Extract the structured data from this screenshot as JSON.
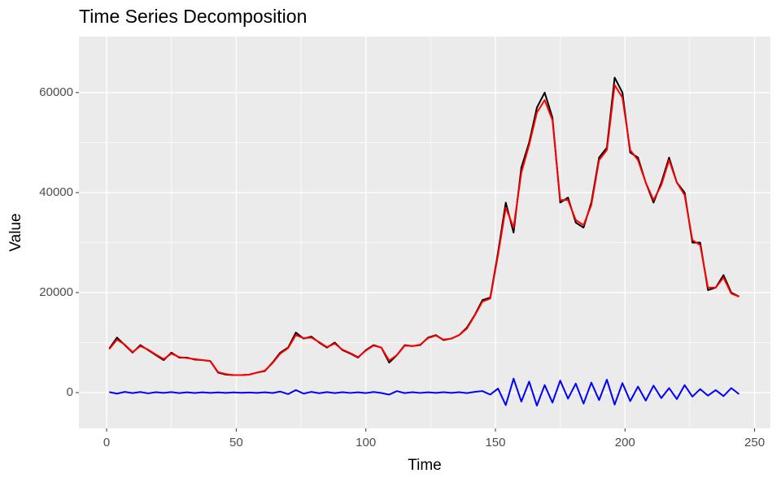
{
  "chart_data": {
    "type": "line",
    "title": "Time Series Decomposition",
    "x_label": "Time",
    "y_label": "Value",
    "x": [
      1,
      4,
      7,
      10,
      13,
      16,
      19,
      22,
      25,
      28,
      31,
      34,
      37,
      40,
      43,
      46,
      49,
      52,
      55,
      58,
      61,
      64,
      67,
      70,
      73,
      76,
      79,
      82,
      85,
      88,
      91,
      94,
      97,
      100,
      103,
      106,
      109,
      112,
      115,
      118,
      121,
      124,
      127,
      130,
      133,
      136,
      139,
      142,
      145,
      148,
      151,
      154,
      157,
      160,
      163,
      166,
      169,
      172,
      175,
      178,
      181,
      184,
      187,
      190,
      193,
      196,
      199,
      202,
      205,
      208,
      211,
      214,
      217,
      220,
      223,
      226,
      229,
      232,
      235,
      238,
      241,
      244
    ],
    "series": [
      {
        "color": "#000000",
        "values": [
          8800,
          11000,
          9500,
          8000,
          9500,
          8500,
          7500,
          6500,
          8000,
          7000,
          7000,
          6600,
          6500,
          6300,
          4000,
          3600,
          3500,
          3500,
          3600,
          4000,
          4300,
          6000,
          8000,
          9000,
          12000,
          10800,
          11200,
          10000,
          9000,
          10000,
          8500,
          7800,
          7000,
          8500,
          9500,
          9000,
          6000,
          7500,
          9500,
          9300,
          9500,
          11000,
          11500,
          10500,
          10800,
          11500,
          13000,
          15500,
          18500,
          19000,
          28000,
          38000,
          32000,
          45000,
          50000,
          57000,
          60000,
          55000,
          38000,
          39000,
          34000,
          33000,
          38000,
          47000,
          49000,
          63000,
          60000,
          48000,
          47000,
          42000,
          38000,
          42000,
          47000,
          42000,
          40000,
          30000,
          30000,
          20500,
          21000,
          23500,
          20000,
          19200
        ]
      },
      {
        "color": "#ff0000",
        "values": [
          8700,
          10600,
          9600,
          8100,
          9300,
          8600,
          7600,
          6700,
          7800,
          7100,
          6900,
          6700,
          6500,
          6300,
          4100,
          3700,
          3500,
          3500,
          3600,
          4000,
          4400,
          5900,
          7800,
          8900,
          11500,
          10900,
          11000,
          10100,
          9100,
          9800,
          8600,
          7900,
          7100,
          8400,
          9400,
          9000,
          6400,
          7500,
          9400,
          9300,
          9600,
          10900,
          11400,
          10600,
          10800,
          11500,
          12800,
          15400,
          18200,
          18800,
          27500,
          37000,
          33000,
          44000,
          49500,
          56000,
          58500,
          54500,
          38500,
          38500,
          34500,
          33500,
          37500,
          46500,
          48500,
          61500,
          59000,
          48500,
          46500,
          42000,
          38500,
          41500,
          46500,
          42000,
          39500,
          30500,
          29500,
          21000,
          21000,
          23000,
          19800,
          19200
        ]
      },
      {
        "color": "#0000ff",
        "values": [
          100,
          -200,
          150,
          -100,
          120,
          -150,
          80,
          -60,
          100,
          -90,
          70,
          -80,
          60,
          -50,
          40,
          -60,
          50,
          -40,
          30,
          -50,
          60,
          -80,
          200,
          -300,
          500,
          -200,
          150,
          -120,
          100,
          -90,
          80,
          -70,
          60,
          -90,
          120,
          -80,
          -400,
          300,
          -100,
          80,
          -70,
          60,
          -50,
          90,
          -60,
          80,
          -100,
          150,
          300,
          -400,
          800,
          -2500,
          2800,
          -1800,
          2200,
          -2600,
          1500,
          -2000,
          2400,
          -1200,
          1800,
          -2200,
          2000,
          -1500,
          2600,
          -2400,
          1900,
          -1700,
          1200,
          -1600,
          1400,
          -1100,
          900,
          -1300,
          1500,
          -800,
          700,
          -600,
          500,
          -700,
          900,
          -300
        ]
      }
    ],
    "xlim": [
      -10.7,
      256.1
    ],
    "ylim": [
      -7150,
      71200
    ],
    "xticks": [
      0,
      50,
      100,
      150,
      200,
      250
    ],
    "yticks": [
      0,
      20000,
      40000,
      60000
    ],
    "grid": true
  }
}
